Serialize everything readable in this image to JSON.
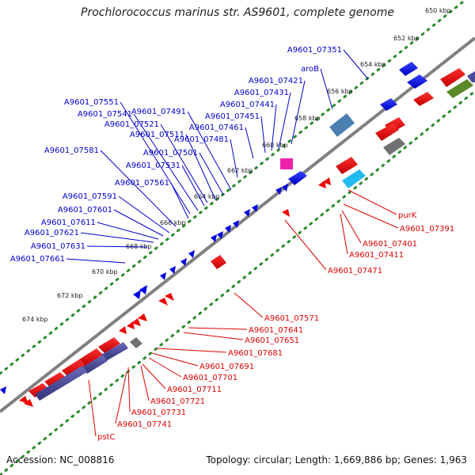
{
  "title": "Prochlorococcus marinus str. AS9601, complete genome",
  "footer": {
    "accession": "Accession: NC_008816",
    "topology": "Topology: circular; Length: 1,669,886 bp; Genes: 1,963"
  },
  "colors": {
    "forward_label": "#0000cc",
    "reverse_label": "#dd0000",
    "backbone": "#808080",
    "ruler_dots": "#2a8a2a",
    "gene_blue": "#0000e6",
    "gene_red": "#ee0000",
    "gene_navy": "#4a4a9a",
    "gene_steel": "#4a7fb0",
    "gene_cyan": "#22bbee",
    "gene_magenta": "#ee22aa",
    "gene_olive": "#5a8a2a",
    "gene_gray": "#707070"
  },
  "tick_labels": [
    "650 kbp",
    "652 kbp",
    "654 kbp",
    "656 kbp",
    "658 kbp",
    "660 kbp",
    "662 kbp",
    "664 kbp",
    "666 kbp",
    "668 kbp",
    "670 kbp",
    "672 kbp",
    "674 kbp"
  ],
  "forward_labels": [
    "A9601_07351",
    "aroB",
    "A9601_07421",
    "A9601_07431",
    "A9601_07441",
    "A9601_07451",
    "A9601_07461",
    "A9601_07481",
    "A9601_07491",
    "A9601_07501",
    "A9601_07511",
    "A9601_07521",
    "A9601_07531",
    "A9601_07541",
    "A9601_07551",
    "A9601_07561",
    "A9601_07581",
    "A9601_07591",
    "A9601_07601",
    "A9601_07611",
    "A9601_07621",
    "A9601_07631",
    "A9601_07661"
  ],
  "reverse_labels": [
    "purK",
    "A9601_07391",
    "A9601_07401",
    "A9601_07411",
    "A9601_07471",
    "A9601_07571",
    "A9601_07641",
    "A9601_07651",
    "A9601_07681",
    "A9601_07691",
    "A9601_07701",
    "A9601_07711",
    "A9601_07721",
    "A9601_07731",
    "A9601_07741",
    "pstC"
  ]
}
